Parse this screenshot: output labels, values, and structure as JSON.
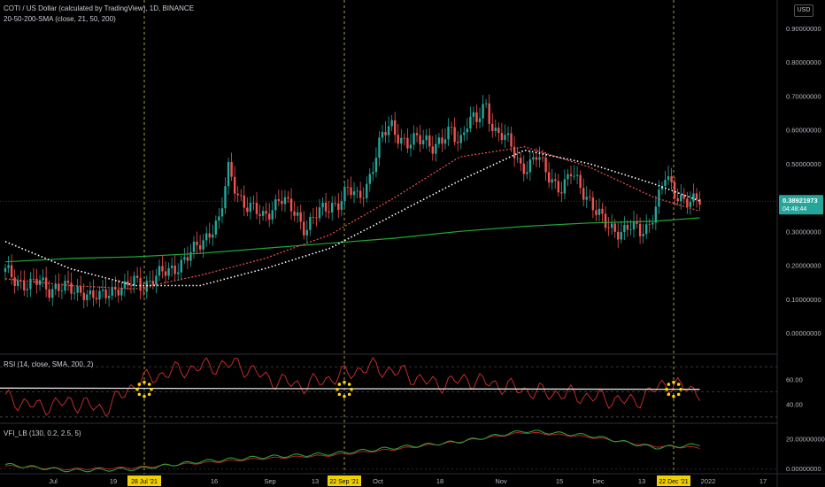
{
  "header": {
    "title": "COTI / US Dollar (calculated by TradingView), 1D, BINANCE",
    "indicator": "20-50-200-SMA (close, 21, 50, 200)",
    "currency_button": "USD"
  },
  "panes": {
    "rsi_label": "RSI (14, close, SMA, 200, 2)",
    "vfi_label": "VFI_LB (130, 0.2, 2.5, 5)"
  },
  "price_badge": {
    "price": "0.38921973",
    "countdown": "04:48:44"
  },
  "colors": {
    "up": "#26a69a",
    "down": "#ef5350",
    "sma21": "#ef5350",
    "sma50": "#ffffff",
    "sma200": "#21a834",
    "rsi": "#d32f2f",
    "rsi_ma": "#e0e0e0",
    "vfi": "#2e9d36",
    "vfi_signal": "#c62828",
    "marker": "#ffd600",
    "badge": "#26a69a"
  },
  "chart_data": [
    {
      "type": "candlestick",
      "title": "COTI / US Dollar (calculated by TradingView), 1D, BINANCE",
      "y_axis": {
        "ticks": [
          "0.90000000",
          "0.80000000",
          "0.70000000",
          "0.60000000",
          "0.50000000",
          "0.40000000",
          "0.30000000",
          "0.20000000",
          "0.10000000",
          "0.00000000"
        ],
        "ylim": [
          0.0,
          0.9
        ]
      },
      "x_axis": {
        "ticks": [
          "Jul",
          "19",
          "28 Jul '21",
          "16",
          "Sep",
          "13",
          "22 Sep '21",
          "Oct",
          "18",
          "Nov",
          "15",
          "Dec",
          "13",
          "22 Dec '21",
          "2022",
          "17"
        ],
        "highlighted": [
          "28 Jul '21",
          "22 Sep '21",
          "22 Dec '21"
        ]
      },
      "last_price": 0.38921973,
      "series": [
        {
          "name": "SMA 21",
          "x": [
            0,
            20,
            40,
            60,
            80,
            100,
            120,
            140,
            160,
            180,
            200,
            214
          ],
          "y": [
            0.16,
            0.14,
            0.13,
            0.17,
            0.22,
            0.29,
            0.4,
            0.52,
            0.55,
            0.49,
            0.4,
            0.36
          ]
        },
        {
          "name": "SMA 50",
          "x": [
            0,
            20,
            40,
            60,
            80,
            100,
            120,
            140,
            160,
            180,
            200,
            214
          ],
          "y": [
            0.27,
            0.19,
            0.14,
            0.14,
            0.19,
            0.25,
            0.35,
            0.45,
            0.54,
            0.5,
            0.44,
            0.39
          ]
        },
        {
          "name": "SMA 200",
          "x": [
            0,
            20,
            40,
            60,
            80,
            100,
            120,
            140,
            160,
            180,
            200,
            214
          ],
          "y": [
            0.21,
            0.22,
            0.225,
            0.235,
            0.25,
            0.265,
            0.28,
            0.3,
            0.315,
            0.325,
            0.33,
            0.34
          ]
        }
      ],
      "candles_ohlc_close": [
        0.18,
        0.16,
        0.15,
        0.14,
        0.15,
        0.13,
        0.14,
        0.13,
        0.12,
        0.13,
        0.11,
        0.1,
        0.12,
        0.14,
        0.13,
        0.15,
        0.14,
        0.16,
        0.17,
        0.18,
        0.2,
        0.22,
        0.24,
        0.27,
        0.31,
        0.33,
        0.48,
        0.42,
        0.38,
        0.36,
        0.34,
        0.37,
        0.4,
        0.37,
        0.35,
        0.31,
        0.34,
        0.36,
        0.38,
        0.39,
        0.42,
        0.4,
        0.43,
        0.5,
        0.58,
        0.62,
        0.58,
        0.55,
        0.57,
        0.58,
        0.55,
        0.56,
        0.6,
        0.57,
        0.63,
        0.62,
        0.68,
        0.6,
        0.58,
        0.55,
        0.5,
        0.49,
        0.52,
        0.48,
        0.45,
        0.42,
        0.47,
        0.44,
        0.4,
        0.35,
        0.32,
        0.31,
        0.3,
        0.31,
        0.3,
        0.32,
        0.38,
        0.46,
        0.42,
        0.4,
        0.38,
        0.39
      ]
    },
    {
      "type": "line",
      "title": "RSI (14, close, SMA, 200, 2)",
      "y_axis": {
        "ticks": [
          "60.00",
          "40.00"
        ]
      },
      "series": [
        {
          "name": "RSI",
          "x": [
            0,
            10,
            20,
            30,
            40,
            50,
            60,
            70,
            80,
            90,
            100,
            110,
            120,
            130,
            140,
            150,
            160,
            170,
            180,
            190,
            200,
            210
          ],
          "y": [
            45,
            38,
            42,
            36,
            58,
            66,
            70,
            72,
            60,
            55,
            62,
            70,
            65,
            56,
            60,
            55,
            50,
            48,
            45,
            42,
            57,
            50
          ]
        },
        {
          "name": "RSI MA",
          "x": [
            0,
            210
          ],
          "y": [
            53,
            52
          ]
        }
      ]
    },
    {
      "type": "line",
      "title": "VFI_LB (130, 0.2, 2.5, 5)",
      "y_axis": {
        "ticks": [
          "20.00000000",
          "0.00000000"
        ]
      },
      "series": [
        {
          "name": "VFI",
          "x": [
            0,
            20,
            40,
            60,
            80,
            100,
            120,
            140,
            160,
            180,
            200,
            214
          ],
          "y": [
            3,
            -1,
            0,
            5,
            8,
            10,
            14,
            18,
            25,
            22,
            14,
            16
          ]
        },
        {
          "name": "Signal",
          "x": [
            0,
            20,
            40,
            60,
            80,
            100,
            120,
            140,
            160,
            180,
            200,
            214
          ],
          "y": [
            2,
            0,
            1,
            4,
            7,
            9,
            13,
            18,
            24,
            21,
            15,
            14
          ]
        }
      ]
    }
  ]
}
